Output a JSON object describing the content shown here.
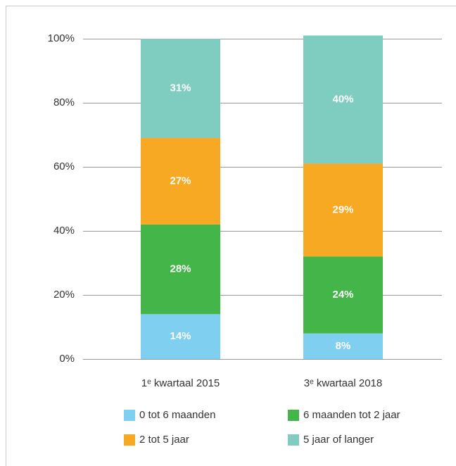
{
  "chart_data": {
    "type": "stacked-bar",
    "categories": [
      "1ᵉ kwartaal 2015",
      "3ᵉ kwartaal 2018"
    ],
    "series": [
      {
        "name": "0 tot 6 maanden",
        "color": "#7fcff1",
        "values": [
          14,
          8
        ],
        "value_labels": [
          "14%",
          "8%"
        ]
      },
      {
        "name": "6 maanden tot 2 jaar",
        "color": "#44b649",
        "values": [
          28,
          24
        ],
        "value_labels": [
          "28%",
          "24%"
        ]
      },
      {
        "name": "2 tot 5 jaar",
        "color": "#f8a923",
        "values": [
          27,
          29
        ],
        "value_labels": [
          "27%",
          "29%"
        ]
      },
      {
        "name": "5 jaar of langer",
        "color": "#7fcdc1",
        "values": [
          31,
          40
        ],
        "value_labels": [
          "31%",
          "40%"
        ]
      }
    ],
    "ylim": [
      0,
      100
    ],
    "yticks": [
      {
        "value": 0,
        "label": "0%"
      },
      {
        "value": 20,
        "label": "20%"
      },
      {
        "value": 40,
        "label": "40%"
      },
      {
        "value": 60,
        "label": "60%"
      },
      {
        "value": 80,
        "label": "80%"
      },
      {
        "value": 100,
        "label": "100%"
      }
    ],
    "grid": true
  }
}
